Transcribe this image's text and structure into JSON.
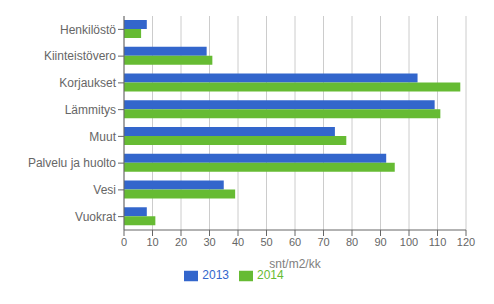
{
  "chart_data": {
    "type": "bar",
    "orientation": "horizontal",
    "categories": [
      "Henkilöstö",
      "Kiinteistövero",
      "Korjaukset",
      "Lämmitys",
      "Muut",
      "Palvelu ja huolto",
      "Vesi",
      "Vuokrat"
    ],
    "series": [
      {
        "name": "2013",
        "color": "#3366CC",
        "values": [
          8,
          29,
          103,
          109,
          74,
          92,
          35,
          8
        ]
      },
      {
        "name": "2014",
        "color": "#66BB33",
        "values": [
          6,
          31,
          118,
          111,
          78,
          95,
          39,
          11
        ]
      }
    ],
    "xlabel": "snt/m2/kk",
    "xlim": [
      0,
      120
    ],
    "xticks": [
      0,
      10,
      20,
      30,
      40,
      50,
      60,
      70,
      80,
      90,
      100,
      110,
      120
    ],
    "grid": true,
    "legend": "bottom"
  }
}
